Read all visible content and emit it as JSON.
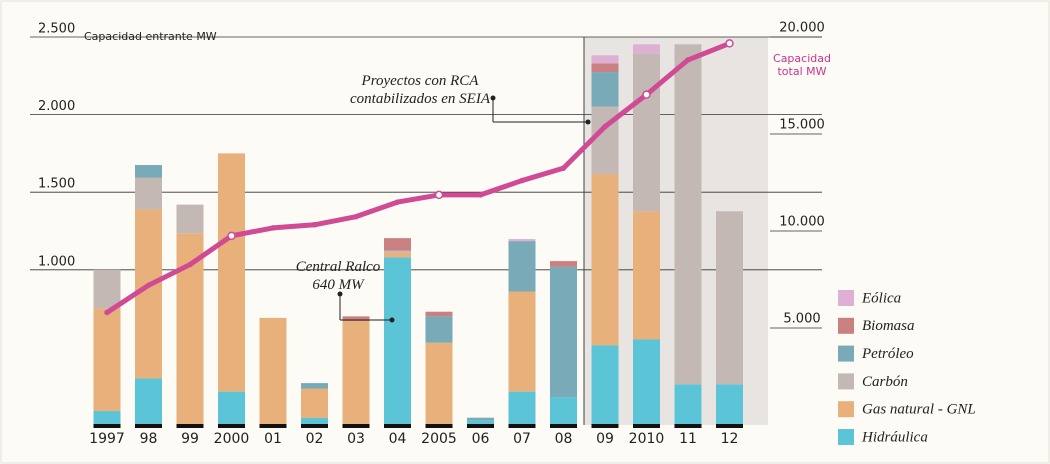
{
  "chart_data": {
    "type": "bar",
    "ylabel": "Capacidad entrante MW",
    "y2label": "Capacidad total MW",
    "categories": [
      "1997",
      "98",
      "99",
      "2000",
      "01",
      "02",
      "03",
      "04",
      "2005",
      "06",
      "07",
      "08",
      "09",
      "2010",
      "11",
      "12"
    ],
    "series": [
      {
        "name": "Hidráulica",
        "color": "#5bc4d6",
        "values": [
          90,
          300,
          0,
          215,
          0,
          45,
          0,
          1080,
          0,
          28,
          215,
          178,
          514,
          551,
          262,
          262
        ]
      },
      {
        "name": "Gas natural - GNL",
        "color": "#e8b07a",
        "values": [
          660,
          1089,
          1235,
          1535,
          690,
          190,
          670,
          31,
          530,
          0,
          645,
          0,
          1103,
          826,
          0,
          0
        ]
      },
      {
        "name": "Carbón",
        "color": "#c4b8b4",
        "values": [
          250,
          204,
          185,
          0,
          0,
          0,
          0,
          12,
          0,
          0,
          0,
          0,
          435,
          1015,
          2191,
          1115
        ]
      },
      {
        "name": "Petróleo",
        "color": "#78aab8",
        "values": [
          0,
          82,
          0,
          0,
          0,
          35,
          0,
          0,
          170,
          19,
          325,
          841,
          222,
          0,
          0,
          0
        ]
      },
      {
        "name": "Biomasa",
        "color": "#c98080",
        "values": [
          0,
          0,
          0,
          0,
          0,
          0,
          30,
          81,
          30,
          0,
          0,
          37,
          56,
          0,
          0,
          0
        ]
      },
      {
        "name": "Eólica",
        "color": "#ddb0d4",
        "values": [
          0,
          0,
          0,
          0,
          0,
          0,
          0,
          0,
          0,
          0,
          13,
          0,
          52,
          61,
          0,
          0
        ]
      }
    ],
    "line": {
      "axis": "y2",
      "color": "#d04a94",
      "values": [
        5800,
        7200,
        8270,
        9750,
        10160,
        10320,
        10740,
        11490,
        11860,
        11860,
        12600,
        13240,
        15380,
        17030,
        18820,
        19670
      ]
    },
    "ylim": [
      0,
      2500
    ],
    "yticks": [
      {
        "value": 1000,
        "label": "1.000"
      },
      {
        "value": 1500,
        "label": "1.500"
      },
      {
        "value": 2000,
        "label": "2.000"
      },
      {
        "value": 2500,
        "label": "2.500"
      }
    ],
    "y2lim": [
      0,
      20000
    ],
    "y2ticks": [
      {
        "value": 5000,
        "label": "5.000"
      },
      {
        "value": 10000,
        "label": "10.000"
      },
      {
        "value": 15000,
        "label": "15.000"
      },
      {
        "value": 20000,
        "label": "20.000"
      }
    ],
    "grid": true,
    "legend": "bottom-right",
    "annotations": [
      "Proyectos con RCA contabilizados en SEIA",
      "Central Ralco 640 MW"
    ]
  }
}
